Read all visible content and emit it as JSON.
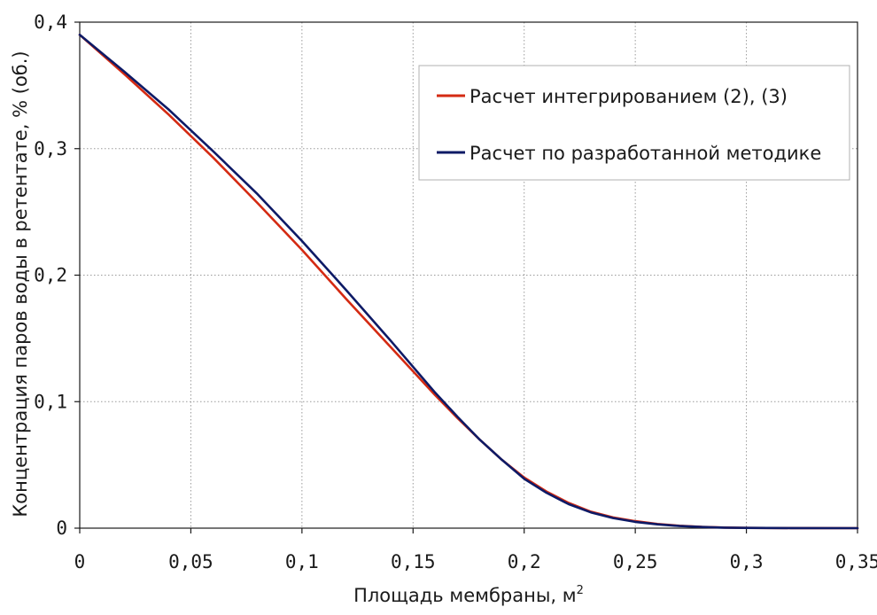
{
  "chart_data": {
    "type": "line",
    "xlabel": "Площадь мембраны, м",
    "xlabel_superscript": "2",
    "ylabel": "Концентрация паров воды в ретентате, % (об.)",
    "xlim": [
      0,
      0.35
    ],
    "ylim": [
      0,
      0.4
    ],
    "xticks": [
      0,
      0.05,
      0.1,
      0.15,
      0.2,
      0.25,
      0.3,
      0.35
    ],
    "yticks": [
      0,
      0.1,
      0.2,
      0.3,
      0.4
    ],
    "xtick_labels": [
      "0",
      "0,05",
      "0,1",
      "0,15",
      "0,2",
      "0,25",
      "0,3",
      "0,35"
    ],
    "ytick_labels": [
      "0",
      "0,1",
      "0,2",
      "0,3",
      "0,4"
    ],
    "grid": true,
    "legend_position": "top-right",
    "series": [
      {
        "name": "Расчет интегрированием (2), (3)",
        "color": "#d42a12",
        "x": [
          0,
          0.02,
          0.04,
          0.06,
          0.08,
          0.1,
          0.12,
          0.14,
          0.16,
          0.17,
          0.18,
          0.19,
          0.2,
          0.21,
          0.22,
          0.23,
          0.24,
          0.25,
          0.26,
          0.27,
          0.28,
          0.29,
          0.3,
          0.32,
          0.35
        ],
        "y": [
          0.39,
          0.359,
          0.327,
          0.293,
          0.257,
          0.22,
          0.181,
          0.143,
          0.105,
          0.087,
          0.07,
          0.054,
          0.04,
          0.029,
          0.02,
          0.013,
          0.0085,
          0.0055,
          0.0033,
          0.0019,
          0.001,
          0.0005,
          0.0002,
          0.0001,
          0.0
        ]
      },
      {
        "name": "Расчет по разработанной методике",
        "color": "#0d1a66",
        "x": [
          0,
          0.02,
          0.04,
          0.06,
          0.08,
          0.1,
          0.12,
          0.14,
          0.16,
          0.17,
          0.18,
          0.19,
          0.2,
          0.21,
          0.22,
          0.23,
          0.24,
          0.25,
          0.26,
          0.27,
          0.28,
          0.29,
          0.3,
          0.32,
          0.35
        ],
        "y": [
          0.39,
          0.361,
          0.331,
          0.298,
          0.264,
          0.227,
          0.188,
          0.148,
          0.107,
          0.088,
          0.07,
          0.054,
          0.039,
          0.028,
          0.019,
          0.0125,
          0.008,
          0.005,
          0.003,
          0.0017,
          0.0009,
          0.0004,
          0.0002,
          0.0001,
          0.0
        ]
      }
    ]
  }
}
